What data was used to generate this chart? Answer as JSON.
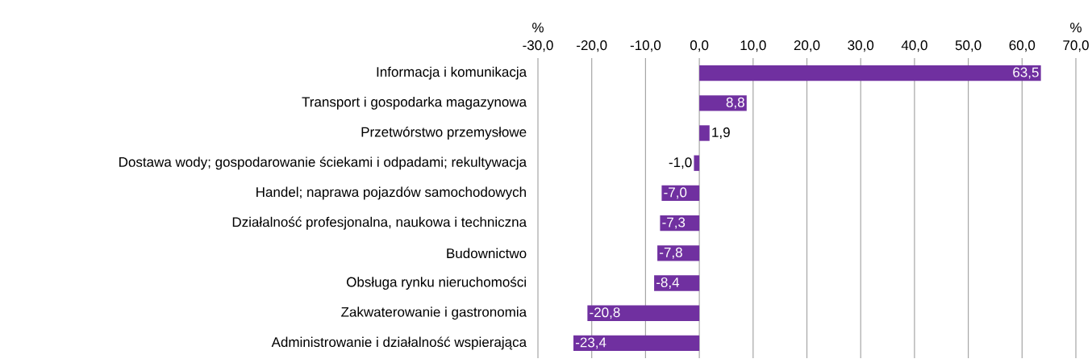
{
  "chart_data": {
    "type": "bar",
    "orientation": "horizontal",
    "xlabel": "%",
    "annotations": [
      "%"
    ],
    "categories": [
      "Informacja i komunikacja",
      "Transport i gospodarka magazynowa",
      "Przetwórstwo przemysłowe",
      "Dostawa wody; gospodarowanie ściekami i odpadami; rekultywacja",
      "Handel; naprawa pojazdów samochodowych",
      "Działalność profesjonalna, naukowa i techniczna",
      "Budownictwo",
      "Obsługa rynku nieruchomości",
      "Zakwaterowanie i gastronomia",
      "Administrowanie i działalność wspierająca"
    ],
    "values": [
      63.5,
      8.8,
      1.9,
      -1.0,
      -7.0,
      -7.3,
      -7.8,
      -8.4,
      -20.8,
      -23.4
    ],
    "value_labels": [
      "63,5",
      "8,8",
      "1,9",
      "-1,0",
      "-7,0",
      "-7,3",
      "-7,8",
      "-8,4",
      "-20,8",
      "-23,4"
    ],
    "color": "#7030a0",
    "xlim": [
      -30,
      70
    ],
    "xticks": [
      {
        "value": -30,
        "label": "-30,0"
      },
      {
        "value": -20,
        "label": "-20,0"
      },
      {
        "value": -10,
        "label": "-10,0"
      },
      {
        "value": 0,
        "label": "0,0"
      },
      {
        "value": 10,
        "label": "10,0"
      },
      {
        "value": 20,
        "label": "20,0"
      },
      {
        "value": 30,
        "label": "30,0"
      },
      {
        "value": 40,
        "label": "40,0"
      },
      {
        "value": 50,
        "label": "50,0"
      },
      {
        "value": 60,
        "label": "60,0"
      },
      {
        "value": 70,
        "label": "70,0"
      }
    ],
    "grid": "x"
  }
}
